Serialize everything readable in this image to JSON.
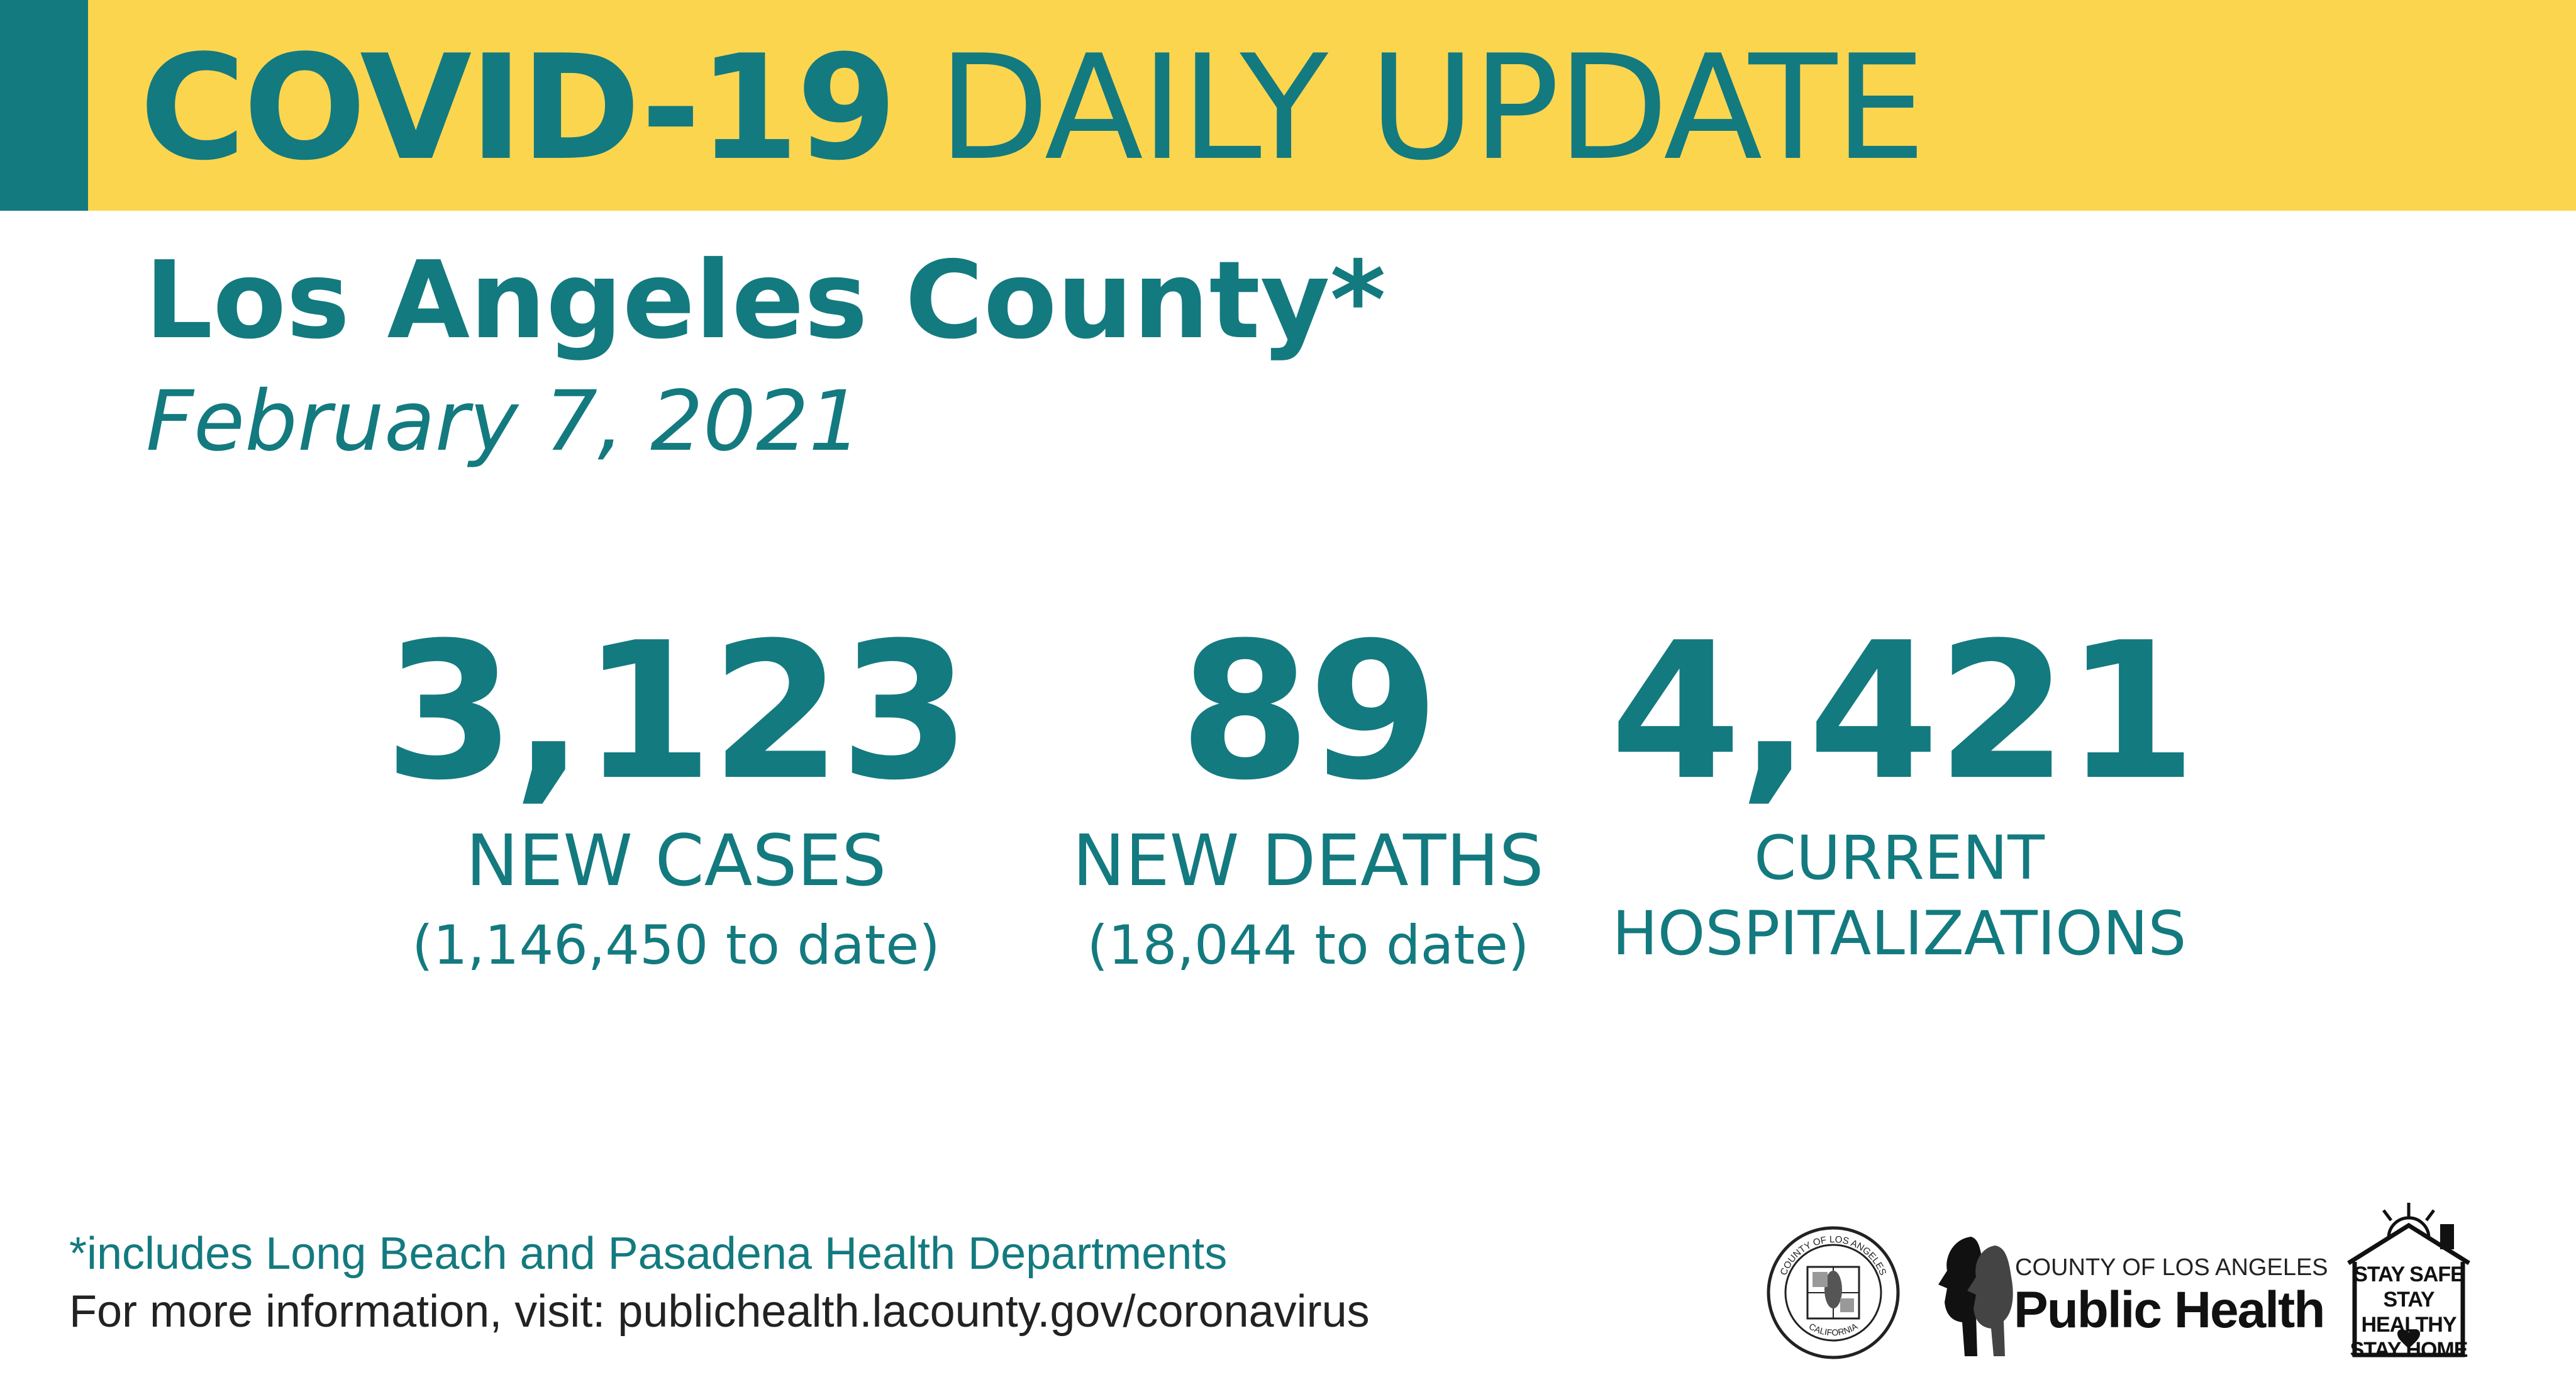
{
  "header": {
    "title_bold": "COVID-19",
    "title_rest": "DAILY UPDATE",
    "county": "Los Angeles County*",
    "date": "February 7, 2021"
  },
  "stats": [
    {
      "value": "3,123",
      "label": "NEW CASES",
      "subtext": "(1,146,450 to date)"
    },
    {
      "value": "89",
      "label": "NEW DEATHS",
      "subtext": "(18,044 to date)"
    },
    {
      "value": "4,421",
      "label_line1": "CURRENT",
      "label_line2": "HOSPITALIZATIONS"
    }
  ],
  "footer": {
    "note": "*includes Long Beach and Pasadena Health Departments",
    "info": "For more information, visit: publichealth.lacounty.gov/coronavirus"
  },
  "logos": {
    "seal_text_top": "COUNTY OF LOS ANGELES",
    "seal_text_bottom": "CALIFORNIA",
    "dept_county": "COUNTY OF LOS ANGELES",
    "dept_name": "Public Health",
    "stay_lines": [
      "STAY SAFE",
      "STAY HEALTHY",
      "STAY HOME"
    ]
  },
  "colors": {
    "teal": "#137a7f",
    "yellow": "#fcd54f"
  }
}
